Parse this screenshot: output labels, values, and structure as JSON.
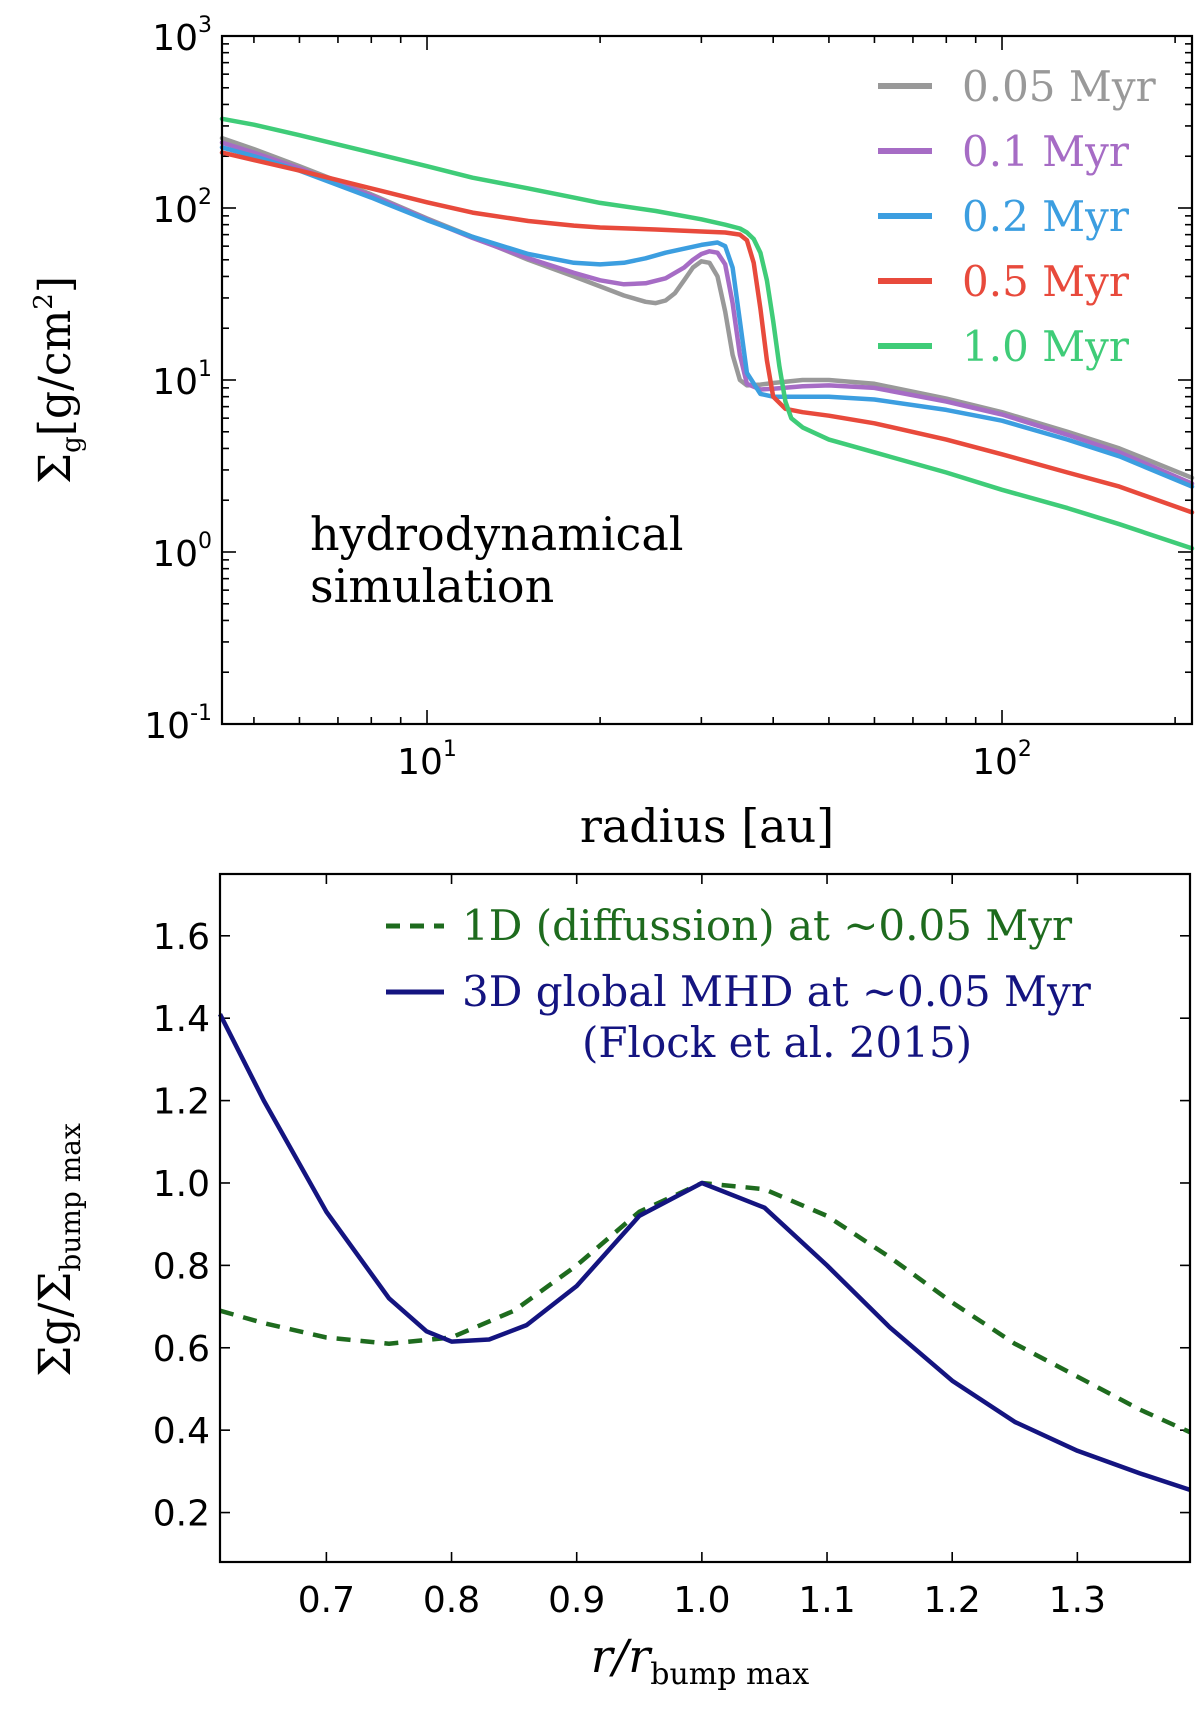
{
  "chart_data": [
    {
      "type": "line",
      "title": "",
      "xlabel": "radius [au]",
      "ylabel": "Σg[g/cm2]",
      "xscale": "log",
      "yscale": "log",
      "xlim": [
        4.4,
        214
      ],
      "ylim": [
        0.1,
        1000
      ],
      "x_ticks": [
        {
          "value": 10,
          "label": "10",
          "exp": "1"
        },
        {
          "value": 100,
          "label": "10",
          "exp": "2"
        }
      ],
      "y_ticks": [
        {
          "value": 1000,
          "label": "10",
          "exp": "3"
        },
        {
          "value": 100,
          "label": "10",
          "exp": "2"
        },
        {
          "value": 10,
          "label": "10",
          "exp": "1"
        },
        {
          "value": 1,
          "label": "10",
          "exp": "0"
        },
        {
          "value": 0.1,
          "label": "10",
          "exp": "-1"
        }
      ],
      "annotation": [
        "hydrodynamical",
        "simulation"
      ],
      "legend_position": "top-right",
      "series": [
        {
          "name": "0.05 Myr",
          "color": "#999999",
          "x": [
            4.4,
            5,
            6,
            8,
            10,
            12,
            15,
            18,
            20,
            22,
            24,
            25,
            26,
            27,
            28,
            29,
            30,
            31,
            32,
            33,
            34,
            35,
            36,
            38,
            40,
            45,
            50,
            60,
            80,
            100,
            130,
            160,
            214
          ],
          "y": [
            255,
            220,
            175,
            120,
            87,
            68,
            50,
            40,
            35,
            31,
            28.5,
            28,
            29,
            32,
            38,
            45,
            49,
            48,
            40,
            25,
            14,
            10,
            9.3,
            9.4,
            9.6,
            10,
            10,
            9.5,
            7.8,
            6.5,
            5,
            4,
            2.7
          ]
        },
        {
          "name": "0.1 Myr",
          "color": "#a66cc5",
          "x": [
            4.4,
            5,
            6,
            8,
            10,
            12,
            15,
            18,
            20,
            22,
            24,
            26,
            28,
            29,
            30,
            31,
            32,
            33,
            34,
            35,
            36,
            38,
            40,
            45,
            50,
            60,
            80,
            100,
            130,
            160,
            214
          ],
          "y": [
            240,
            210,
            170,
            118,
            86,
            67,
            51,
            42,
            38,
            36,
            36.5,
            39,
            45,
            50,
            54,
            56,
            55,
            47,
            28,
            14,
            9.5,
            8.8,
            8.9,
            9.2,
            9.3,
            9,
            7.5,
            6.3,
            4.8,
            3.8,
            2.5
          ]
        },
        {
          "name": "0.2 Myr",
          "color": "#3c9ee0",
          "x": [
            4.4,
            5,
            6,
            8,
            10,
            12,
            15,
            18,
            20,
            22,
            24,
            26,
            28,
            30,
            32,
            33,
            34,
            35,
            36,
            38,
            40,
            45,
            50,
            60,
            80,
            100,
            130,
            160,
            214
          ],
          "y": [
            225,
            200,
            165,
            115,
            85,
            68,
            54,
            48,
            47,
            48,
            51,
            55,
            58,
            61,
            63,
            60,
            45,
            22,
            11,
            8.3,
            8,
            8,
            8,
            7.7,
            6.7,
            5.8,
            4.5,
            3.6,
            2.4
          ]
        },
        {
          "name": "0.5 Myr",
          "color": "#e84a3c",
          "x": [
            4.4,
            5,
            6,
            8,
            10,
            12,
            15,
            18,
            20,
            25,
            30,
            33,
            35,
            36,
            37,
            38,
            39,
            40,
            42,
            45,
            50,
            60,
            80,
            100,
            130,
            160,
            214
          ],
          "y": [
            210,
            190,
            165,
            130,
            108,
            94,
            84,
            79,
            77,
            75,
            73,
            72,
            70,
            65,
            48,
            26,
            13,
            8,
            6.8,
            6.5,
            6.2,
            5.6,
            4.5,
            3.7,
            2.9,
            2.4,
            1.7
          ]
        },
        {
          "name": "1.0 Myr",
          "color": "#3fcc78",
          "x": [
            4.4,
            5,
            6,
            8,
            10,
            12,
            15,
            18,
            20,
            25,
            30,
            33,
            35,
            36,
            37,
            38,
            39,
            40,
            41,
            42,
            43,
            45,
            50,
            60,
            80,
            100,
            130,
            160,
            214
          ],
          "y": [
            330,
            305,
            265,
            210,
            175,
            150,
            130,
            115,
            107,
            96,
            86,
            80,
            76,
            72,
            66,
            55,
            38,
            22,
            12,
            7.5,
            6,
            5.3,
            4.5,
            3.8,
            2.9,
            2.3,
            1.8,
            1.45,
            1.05
          ]
        }
      ]
    },
    {
      "type": "line",
      "title": "",
      "xlabel": "r/r",
      "xlabel_sub": "bump max",
      "ylabel": "Σg/Σ",
      "ylabel_sub": "bump max",
      "xlim": [
        0.615,
        1.39
      ],
      "ylim": [
        0.08,
        1.75
      ],
      "x_ticks": [
        0.7,
        0.8,
        0.9,
        1.0,
        1.1,
        1.2,
        1.3
      ],
      "x_tick_labels": [
        "0.7",
        "0.8",
        "0.9",
        "1.0",
        "1.1",
        "1.2",
        "1.3"
      ],
      "y_ticks": [
        0.2,
        0.4,
        0.6,
        0.8,
        1.0,
        1.2,
        1.4,
        1.6
      ],
      "y_tick_labels": [
        "0.2",
        "0.4",
        "0.6",
        "0.8",
        "1.0",
        "1.2",
        "1.4",
        "1.6"
      ],
      "legend_position": "top-right",
      "legend_note": "(Flock et al. 2015)",
      "series": [
        {
          "name": "1D (diffussion) at  ~0.05 Myr",
          "color": "#1e6b1e",
          "style": "dashed",
          "x": [
            0.615,
            0.65,
            0.7,
            0.75,
            0.8,
            0.85,
            0.9,
            0.95,
            1.0,
            1.05,
            1.1,
            1.15,
            1.2,
            1.25,
            1.3,
            1.35,
            1.39
          ],
          "y": [
            0.69,
            0.66,
            0.625,
            0.61,
            0.625,
            0.69,
            0.8,
            0.93,
            1.0,
            0.985,
            0.92,
            0.82,
            0.71,
            0.61,
            0.53,
            0.45,
            0.395
          ]
        },
        {
          "name": "3D global MHD  at  ~0.05 Myr",
          "color": "#141480",
          "style": "solid",
          "x": [
            0.615,
            0.65,
            0.7,
            0.75,
            0.78,
            0.8,
            0.83,
            0.86,
            0.9,
            0.95,
            1.0,
            1.05,
            1.1,
            1.15,
            1.2,
            1.25,
            1.3,
            1.35,
            1.39
          ],
          "y": [
            1.41,
            1.2,
            0.93,
            0.72,
            0.64,
            0.615,
            0.62,
            0.655,
            0.75,
            0.92,
            1.0,
            0.94,
            0.8,
            0.65,
            0.52,
            0.42,
            0.35,
            0.295,
            0.255
          ]
        }
      ]
    }
  ]
}
